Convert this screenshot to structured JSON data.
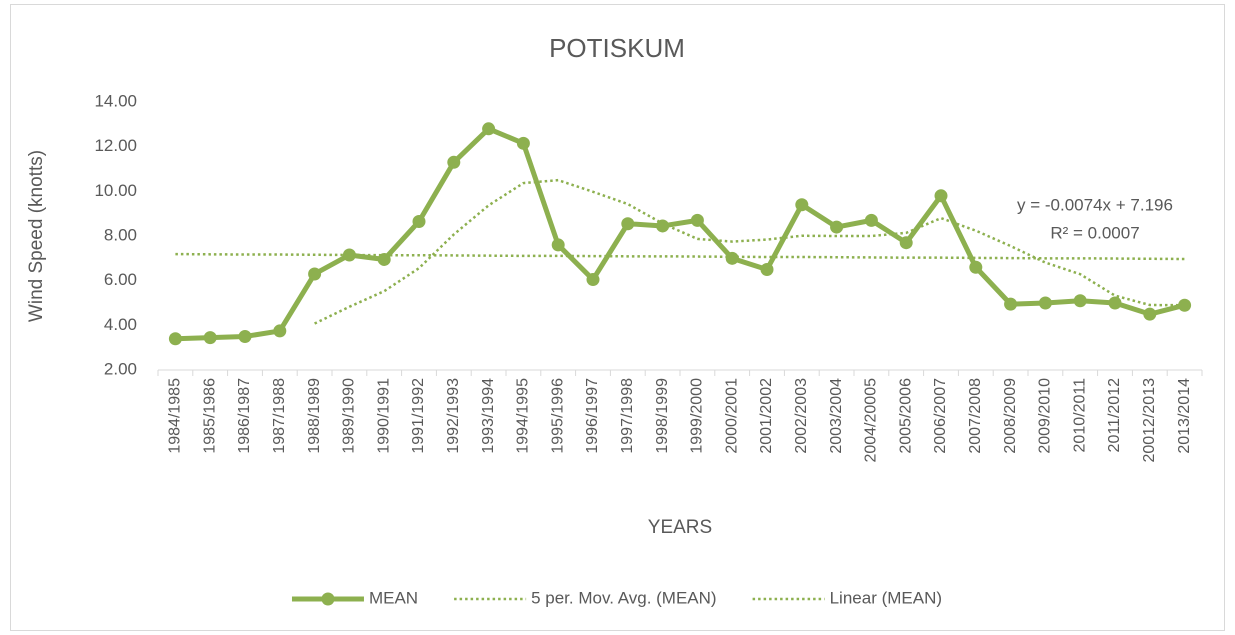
{
  "chart_data": {
    "type": "line",
    "title": "POTISKUM",
    "y_label": "Wind Speed (knotts)",
    "x_label": "YEARS",
    "annotations": [
      "y = -0.0074x + 7.196",
      "R² = 0.0007"
    ],
    "categories": [
      "1984/1985",
      "1985/1986",
      "1986/1987",
      "1987/1988",
      "1988/1989",
      "1989/1990",
      "1990/1991",
      "1991/1992",
      "1992/1993",
      "1993/1994",
      "1994/1995",
      "1995/1996",
      "1996/1997",
      "1997/1998",
      "1998/1999",
      "1999/2000",
      "2000/2001",
      "2001/2002",
      "2002/2003",
      "2003/2004",
      "2004/20005",
      "2005/2006",
      "2006/2007",
      "2007/2008",
      "2008/2009",
      "2009/2010",
      "2010/2011",
      "2011/2012",
      "20012/2013",
      "2013/2014"
    ],
    "series": [
      {
        "name": "MEAN",
        "color": "#8db04f",
        "dash": "solid",
        "markers": true,
        "values": [
          3.4,
          3.45,
          3.5,
          3.75,
          6.3,
          7.15,
          6.95,
          8.65,
          11.3,
          12.8,
          12.15,
          7.6,
          6.05,
          8.55,
          8.45,
          8.7,
          7.0,
          6.5,
          9.4,
          8.4,
          8.7,
          7.7,
          9.8,
          6.6,
          4.95,
          5.0,
          5.1,
          5.0,
          4.5,
          4.9
        ]
      },
      {
        "name": "5 per. Mov. Avg. (MEAN)",
        "color": "#8db04f",
        "dash": "dotted",
        "markers": false,
        "values": [
          null,
          null,
          null,
          null,
          4.08,
          4.83,
          5.53,
          6.56,
          8.07,
          9.37,
          10.37,
          10.5,
          9.98,
          9.43,
          8.56,
          7.87,
          7.75,
          7.84,
          8.01,
          8.0,
          8.0,
          8.14,
          8.8,
          8.24,
          7.55,
          6.81,
          6.29,
          5.33,
          4.91,
          4.9
        ]
      },
      {
        "name": "Linear (MEAN)",
        "color": "#8db04f",
        "dash": "dotted",
        "markers": false,
        "values": [
          7.19,
          7.18,
          7.17,
          7.17,
          7.16,
          7.15,
          7.14,
          7.14,
          7.13,
          7.12,
          7.11,
          7.11,
          7.1,
          7.09,
          7.09,
          7.08,
          7.07,
          7.06,
          7.06,
          7.05,
          7.04,
          7.03,
          7.03,
          7.02,
          7.01,
          7.0,
          7.0,
          6.99,
          6.98,
          6.97
        ]
      }
    ],
    "ylim": [
      2,
      14
    ],
    "yticks": [
      {
        "value": 2,
        "label": "2.00"
      },
      {
        "value": 4,
        "label": "4.00"
      },
      {
        "value": 6,
        "label": "6.00"
      },
      {
        "value": 8,
        "label": "8.00"
      },
      {
        "value": 10,
        "label": "10.00"
      },
      {
        "value": 12,
        "label": "12.00"
      },
      {
        "value": 14,
        "label": "14.00"
      }
    ],
    "grid": false,
    "legend": "bottom"
  }
}
